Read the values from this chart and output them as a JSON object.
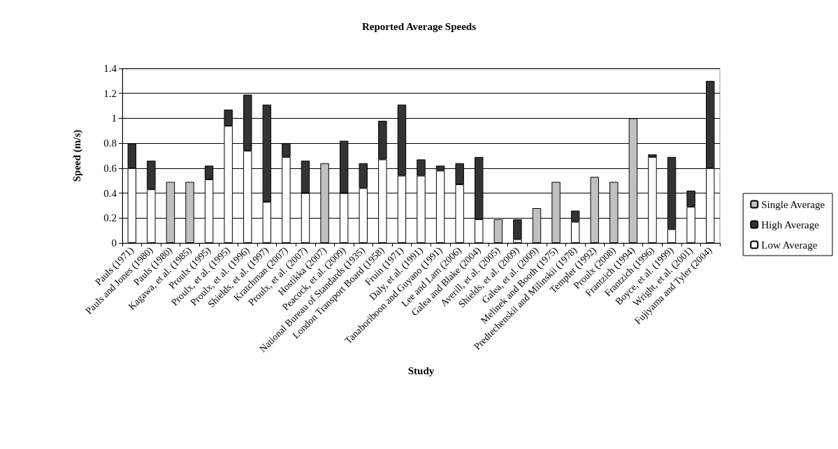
{
  "chart_data": {
    "type": "bar",
    "title": "Reported Average Speeds",
    "xlabel": "Study",
    "ylabel": "Speed (m/s)",
    "categories": [
      "Pauls (1971)",
      "Pauls and Jones (1980)",
      "Pauls (1980)",
      "Kagawa, et al. (1985)",
      "Proulx (1995)",
      "Proulx, et al. (1995)",
      "Proulx, et al. (1996)",
      "Shields, et al. (1997)",
      "Kratchman (2007)",
      "Proulx, et al. (2007)",
      "Hostikka (2007)",
      "Peacock, et al. (2009)",
      "National Bureau of Standards (1935)",
      "London Transport Board (1958)",
      "Fruin (1971)",
      "Daly, et al. (1991)",
      "Tanaboriboon and Guyano (1991)",
      "Lee and Lam (2006)",
      "Galea and Blake (2004)",
      "Averill, et al. (2005)",
      "Shields, et al. (2009)",
      "Galea, et al. (2009)",
      "Melinek and Booth (1975)",
      "Predtechenskii and Milinskii (1978)",
      "Templer (1992)",
      "Proulx (2008)",
      "Frantzich (1994)",
      "Frantzich (1996)",
      "Boyce, et al. (1999)",
      "Wright, et al. (2001)",
      "Fujiyama and Tyler (2004)"
    ],
    "stacked": true,
    "series": [
      {
        "name": "Low Average",
        "color": "#ffffff",
        "values": [
          0.6,
          0.43,
          null,
          null,
          0.51,
          0.94,
          0.74,
          0.33,
          0.69,
          0.4,
          null,
          0.4,
          0.44,
          0.67,
          0.54,
          0.54,
          0.58,
          0.47,
          0.19,
          null,
          0.03,
          null,
          null,
          0.17,
          null,
          null,
          null,
          0.69,
          0.11,
          0.29,
          0.6
        ]
      },
      {
        "name": "High Average",
        "color": "#333333",
        "values": [
          0.2,
          0.23,
          null,
          null,
          0.11,
          0.13,
          0.45,
          0.78,
          0.11,
          0.26,
          null,
          0.42,
          0.2,
          0.31,
          0.57,
          0.13,
          0.04,
          0.17,
          0.5,
          null,
          0.16,
          null,
          null,
          0.09,
          null,
          null,
          null,
          0.02,
          0.58,
          0.13,
          0.7
        ]
      },
      {
        "name": "Single Average",
        "color": "#c0c0c0",
        "values": [
          null,
          null,
          0.49,
          0.49,
          null,
          null,
          null,
          null,
          null,
          null,
          0.64,
          null,
          null,
          null,
          null,
          null,
          null,
          null,
          null,
          0.19,
          null,
          0.28,
          0.49,
          null,
          0.53,
          0.49,
          1.0,
          null,
          null,
          null,
          null
        ]
      }
    ],
    "ylim": [
      0,
      1.4
    ],
    "yticks": [
      0,
      0.2,
      0.4,
      0.6,
      0.8,
      1,
      1.2,
      1.4
    ],
    "grid": "y",
    "legend": "right"
  }
}
